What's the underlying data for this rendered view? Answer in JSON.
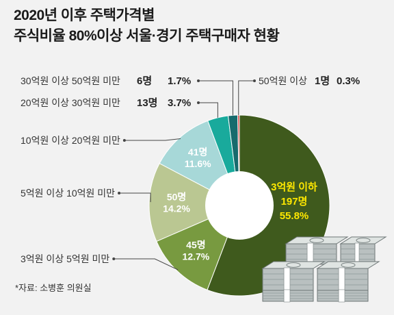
{
  "title": {
    "line1": "2020년 이후 주택가격별",
    "line2": "주식비율 80%이상 서울·경기 주택구매자 현황"
  },
  "source": "*자료: 소병훈 의원실",
  "chart_data": {
    "type": "pie",
    "style": "donut",
    "slices": [
      {
        "category": "3억원 이하",
        "count": "197명",
        "percent": "55.8%",
        "value": 55.8,
        "color": "#3f5a1d",
        "label_color": "#ffe800"
      },
      {
        "category": "3억원 이상 5억원 미만",
        "count": "45명",
        "percent": "12.7%",
        "value": 12.7,
        "color": "#789a40",
        "label_color": "#ffffff"
      },
      {
        "category": "5억원 이상 10억원 미만",
        "count": "50명",
        "percent": "14.2%",
        "value": 14.2,
        "color": "#bac792",
        "label_color": "#ffffff"
      },
      {
        "category": "10억원 이상 20억원 미만",
        "count": "41명",
        "percent": "11.6%",
        "value": 11.6,
        "color": "#a7d8d8",
        "label_color": "#ffffff"
      },
      {
        "category": "20억원 이상 30억원 미만",
        "count": "13명",
        "percent": "3.7%",
        "value": 3.7,
        "color": "#19aa9c",
        "label_color": "#222222"
      },
      {
        "category": "30억원 이상 50억원 미만",
        "count": "6명",
        "percent": "1.7%",
        "value": 1.7,
        "color": "#176b6d",
        "label_color": "#222222"
      },
      {
        "category": "50억원 이상",
        "count": "1명",
        "percent": "0.3%",
        "value": 0.3,
        "color": "#d93a3a",
        "label_color": "#222222"
      }
    ]
  }
}
